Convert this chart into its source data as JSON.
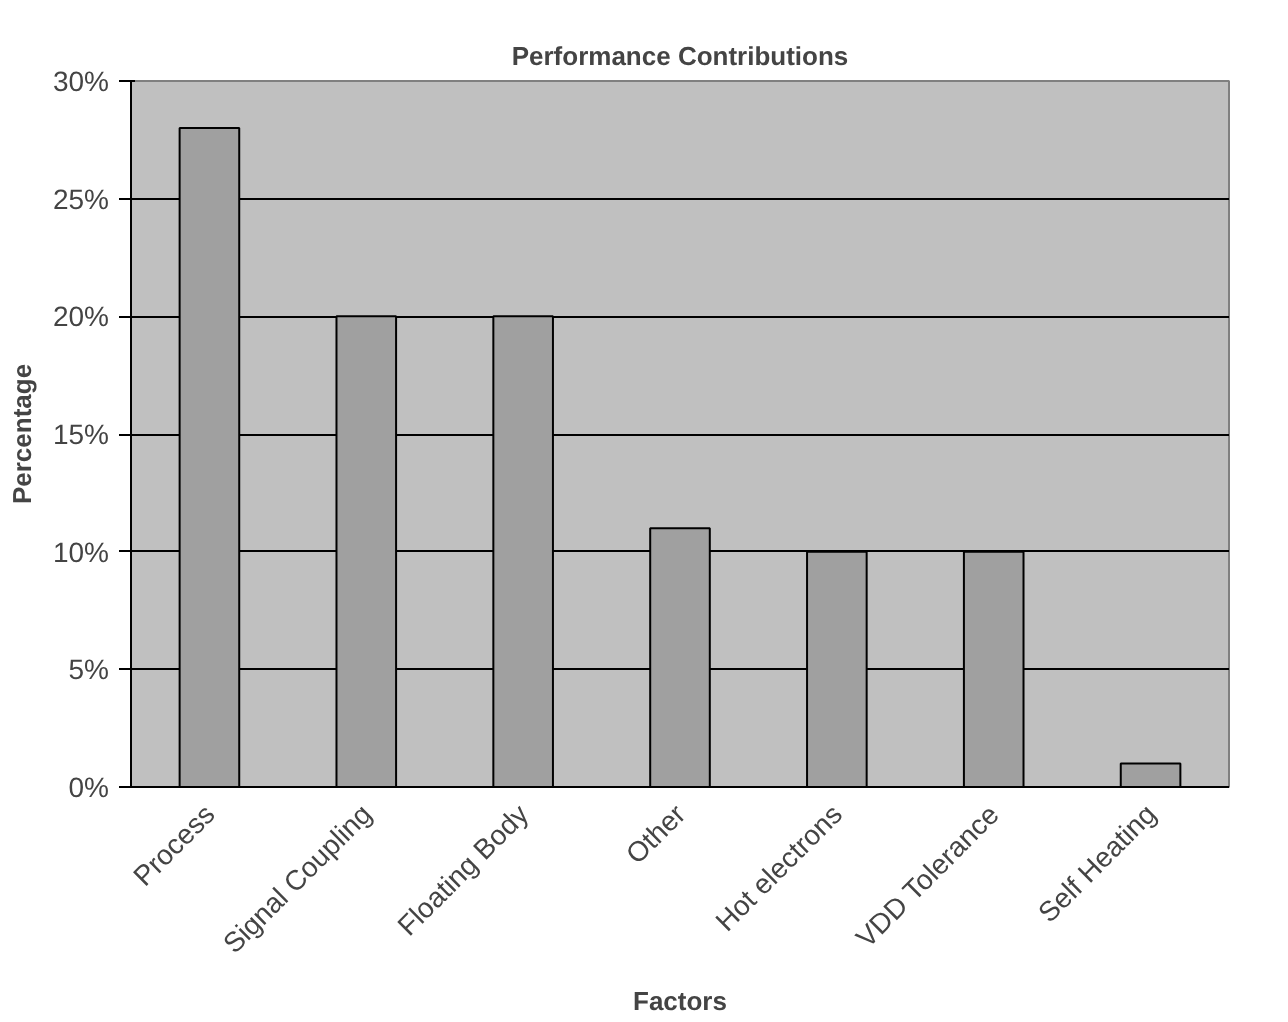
{
  "chart_data": {
    "type": "bar",
    "title": "Performance Contributions",
    "xlabel": "Factors",
    "ylabel": "Percentage",
    "categories": [
      "Process",
      "Signal Coupling",
      "Floating Body",
      "Other",
      "Hot electrons",
      "VDD Tolerance",
      "Self Heating"
    ],
    "values": [
      28,
      20,
      20,
      11,
      10,
      10,
      1
    ],
    "color": "#a0a0a0",
    "ylim": [
      0,
      30
    ],
    "yticks": [
      {
        "value": 0,
        "label": "0%"
      },
      {
        "value": 5,
        "label": "5%"
      },
      {
        "value": 10,
        "label": "10%"
      },
      {
        "value": 15,
        "label": "15%"
      },
      {
        "value": 20,
        "label": "20%"
      },
      {
        "value": 25,
        "label": "25%"
      },
      {
        "value": 30,
        "label": "30%"
      }
    ],
    "grid": "y"
  }
}
